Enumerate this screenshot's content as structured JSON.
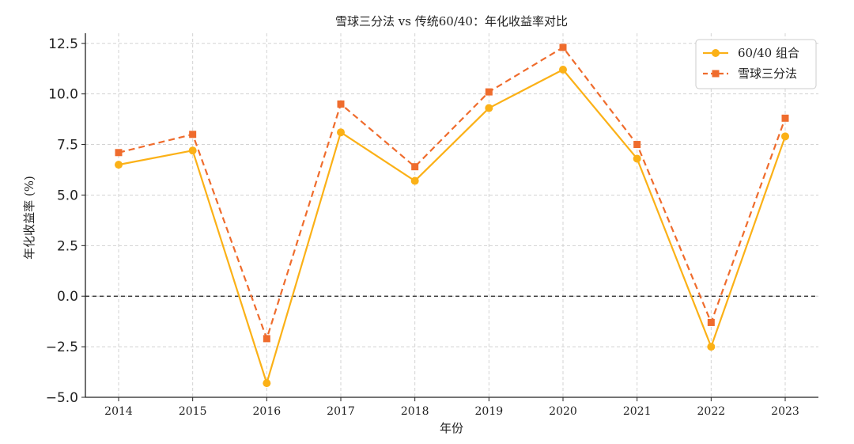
{
  "chart_data": {
    "type": "line",
    "title": "雪球三分法 vs 传统60/40：年化收益率对比",
    "xlabel": "年份",
    "ylabel": "年化收益率 (%)",
    "categories": [
      "2014",
      "2015",
      "2016",
      "2017",
      "2018",
      "2019",
      "2020",
      "2021",
      "2022",
      "2023"
    ],
    "ylim": [
      -5.0,
      13.0
    ],
    "yticks": [
      "−5.0",
      "−2.5",
      "0.0",
      "2.5",
      "5.0",
      "7.5",
      "10.0",
      "12.5"
    ],
    "ytick_values": [
      -5.0,
      -2.5,
      0.0,
      2.5,
      5.0,
      7.5,
      10.0,
      12.5
    ],
    "grid": true,
    "zero_line": true,
    "legend_position": "top-right",
    "series": [
      {
        "name": "60/40 组合",
        "values": [
          6.5,
          7.2,
          -4.3,
          8.1,
          5.7,
          9.3,
          11.2,
          6.8,
          -2.5,
          7.9
        ],
        "color": "#fbb117",
        "marker": "circle",
        "line_style": "solid"
      },
      {
        "name": "雪球三分法",
        "values": [
          7.1,
          8.0,
          -2.1,
          9.5,
          6.4,
          10.1,
          12.3,
          7.5,
          -1.3,
          8.8
        ],
        "color": "#ef6c2d",
        "marker": "square",
        "line_style": "dashed"
      }
    ]
  }
}
